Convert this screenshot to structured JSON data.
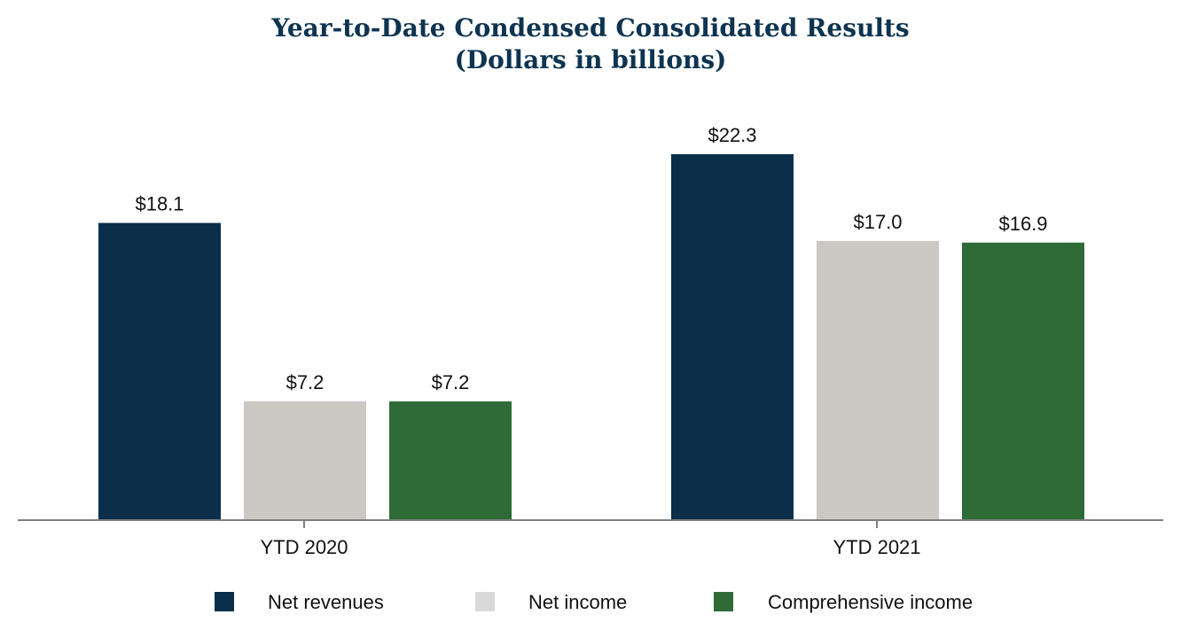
{
  "chart_data": {
    "type": "bar",
    "title": "Year-to-Date Condensed Consolidated Results",
    "subtitle": "(Dollars in billions)",
    "categories": [
      "YTD 2020",
      "YTD 2021"
    ],
    "series": [
      {
        "name": "Net revenues",
        "color": "#0b2f4a",
        "values": [
          18.1,
          22.3
        ],
        "labels": [
          "$18.1",
          "$22.3"
        ]
      },
      {
        "name": "Net income",
        "color": "#cbc8c3",
        "values": [
          7.2,
          17.0
        ],
        "labels": [
          "$7.2",
          "$17.0"
        ]
      },
      {
        "name": "Comprehensive income",
        "color": "#2e6b37",
        "values": [
          7.2,
          16.9
        ],
        "labels": [
          "$7.2",
          "$16.9"
        ]
      }
    ],
    "ylim": [
      0,
      22.3
    ],
    "grid": false,
    "legend_position": "bottom"
  }
}
